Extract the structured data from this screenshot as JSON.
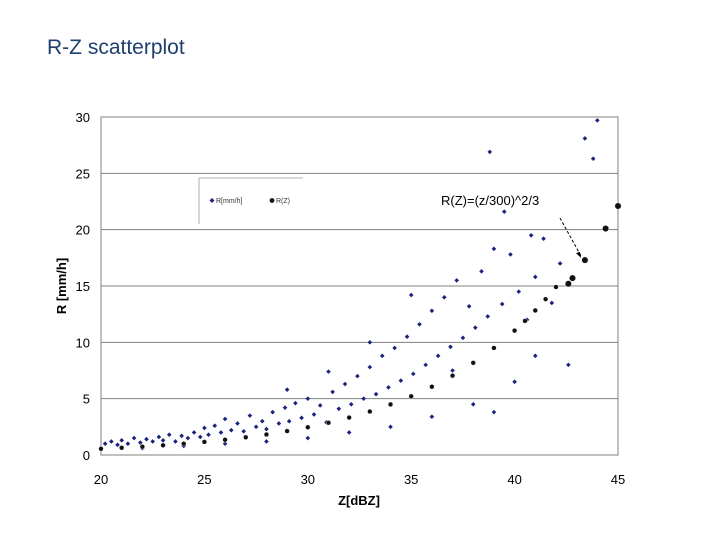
{
  "slide": {
    "title": "R-Z scatterplot"
  },
  "colors": {
    "observed": "#1a237e",
    "model": "#111111",
    "grid": "#808080",
    "title": "#1f3f6e"
  },
  "chart_data": {
    "type": "scatter",
    "title": "",
    "xlabel": "Z[dBZ]",
    "ylabel": "R [mm/h]",
    "xlim": [
      20,
      45
    ],
    "ylim": [
      0,
      30
    ],
    "x_ticks": [
      "20",
      "25",
      "30",
      "35",
      "40",
      "45"
    ],
    "y_ticks": [
      "0",
      "5",
      "10",
      "15",
      "20",
      "25",
      "30"
    ],
    "grid": "horizontal",
    "legend": {
      "position": "upper-left",
      "entries": [
        "R[mm/h]",
        "R(Z)"
      ]
    },
    "annotation": {
      "text": "R(Z)=(z/300)^2/3",
      "points_to": [
        43.4,
        17.3
      ]
    },
    "series": [
      {
        "name": "R[mm/h]",
        "marker": "diamond",
        "color": "#1a237e",
        "points": [
          [
            20.2,
            1.0
          ],
          [
            20.5,
            1.2
          ],
          [
            20.8,
            0.9
          ],
          [
            21.0,
            1.3
          ],
          [
            21.3,
            1.0
          ],
          [
            21.6,
            1.5
          ],
          [
            21.9,
            1.1
          ],
          [
            22.2,
            1.4
          ],
          [
            22.5,
            1.2
          ],
          [
            22.8,
            1.6
          ],
          [
            23.0,
            1.3
          ],
          [
            23.3,
            1.8
          ],
          [
            23.6,
            1.2
          ],
          [
            23.9,
            1.7
          ],
          [
            24.2,
            1.5
          ],
          [
            24.5,
            2.0
          ],
          [
            24.8,
            1.6
          ],
          [
            25.0,
            2.4
          ],
          [
            25.2,
            1.8
          ],
          [
            25.5,
            2.6
          ],
          [
            25.8,
            2.0
          ],
          [
            26.0,
            3.2
          ],
          [
            26.3,
            2.2
          ],
          [
            26.6,
            2.8
          ],
          [
            26.9,
            2.1
          ],
          [
            27.2,
            3.5
          ],
          [
            27.5,
            2.5
          ],
          [
            27.8,
            3.0
          ],
          [
            28.0,
            2.3
          ],
          [
            28.3,
            3.8
          ],
          [
            28.6,
            2.8
          ],
          [
            28.9,
            4.2
          ],
          [
            29.1,
            3.0
          ],
          [
            29.4,
            4.6
          ],
          [
            29.7,
            3.3
          ],
          [
            30.0,
            5.0
          ],
          [
            30.3,
            3.6
          ],
          [
            30.6,
            4.4
          ],
          [
            30.9,
            2.9
          ],
          [
            31.2,
            5.6
          ],
          [
            31.5,
            4.1
          ],
          [
            31.8,
            6.3
          ],
          [
            32.1,
            4.5
          ],
          [
            32.4,
            7.0
          ],
          [
            32.7,
            5.0
          ],
          [
            33.0,
            7.8
          ],
          [
            33.3,
            5.4
          ],
          [
            33.6,
            8.8
          ],
          [
            33.9,
            6.0
          ],
          [
            34.2,
            9.5
          ],
          [
            34.5,
            6.6
          ],
          [
            34.8,
            10.5
          ],
          [
            35.1,
            7.2
          ],
          [
            35.4,
            11.6
          ],
          [
            35.7,
            8.0
          ],
          [
            36.0,
            12.8
          ],
          [
            36.3,
            8.8
          ],
          [
            36.6,
            14.0
          ],
          [
            36.9,
            9.6
          ],
          [
            37.2,
            15.5
          ],
          [
            37.5,
            10.4
          ],
          [
            37.8,
            13.2
          ],
          [
            38.1,
            11.3
          ],
          [
            38.4,
            16.3
          ],
          [
            38.7,
            12.3
          ],
          [
            39.0,
            18.3
          ],
          [
            39.4,
            13.4
          ],
          [
            39.8,
            17.8
          ],
          [
            40.2,
            14.5
          ],
          [
            40.6,
            12.0
          ],
          [
            41.0,
            15.8
          ],
          [
            41.4,
            19.2
          ],
          [
            41.8,
            13.5
          ],
          [
            42.2,
            17.0
          ],
          [
            42.6,
            8.0
          ],
          [
            43.4,
            28.1
          ],
          [
            43.8,
            26.3
          ],
          [
            44.0,
            29.7
          ],
          [
            22.0,
            0.6
          ],
          [
            24.0,
            0.8
          ],
          [
            26.0,
            1.0
          ],
          [
            28.0,
            1.2
          ],
          [
            30.0,
            1.5
          ],
          [
            32.0,
            2.0
          ],
          [
            34.0,
            2.5
          ],
          [
            36.0,
            3.4
          ],
          [
            38.0,
            4.5
          ],
          [
            40.0,
            6.5
          ],
          [
            29.0,
            5.8
          ],
          [
            31.0,
            7.4
          ],
          [
            33.0,
            10.0
          ],
          [
            35.0,
            14.2
          ],
          [
            37.0,
            7.5
          ],
          [
            39.0,
            3.8
          ],
          [
            41.0,
            8.8
          ],
          [
            38.8,
            26.9
          ],
          [
            39.5,
            21.6
          ],
          [
            40.8,
            19.5
          ]
        ]
      },
      {
        "name": "R(Z)",
        "marker": "circle",
        "color": "#111111",
        "points": [
          [
            20.0,
            0.55
          ],
          [
            21.0,
            0.64
          ],
          [
            22.0,
            0.74
          ],
          [
            23.0,
            0.86
          ],
          [
            24.0,
            1.0
          ],
          [
            25.0,
            1.16
          ],
          [
            26.0,
            1.35
          ],
          [
            27.0,
            1.57
          ],
          [
            28.0,
            1.82
          ],
          [
            29.0,
            2.12
          ],
          [
            30.0,
            2.46
          ],
          [
            31.0,
            2.86
          ],
          [
            32.0,
            3.32
          ],
          [
            33.0,
            3.86
          ],
          [
            34.0,
            4.49
          ],
          [
            35.0,
            5.21
          ],
          [
            36.0,
            6.06
          ],
          [
            37.0,
            7.04
          ],
          [
            38.0,
            8.18
          ],
          [
            39.0,
            9.5
          ],
          [
            40.0,
            11.04
          ],
          [
            40.5,
            11.9
          ],
          [
            41.0,
            12.83
          ],
          [
            41.5,
            13.83
          ],
          [
            42.0,
            14.91
          ],
          [
            42.6,
            15.2
          ],
          [
            42.8,
            15.7
          ],
          [
            43.4,
            17.3
          ],
          [
            44.4,
            20.1
          ],
          [
            45.0,
            22.1
          ]
        ]
      }
    ]
  }
}
